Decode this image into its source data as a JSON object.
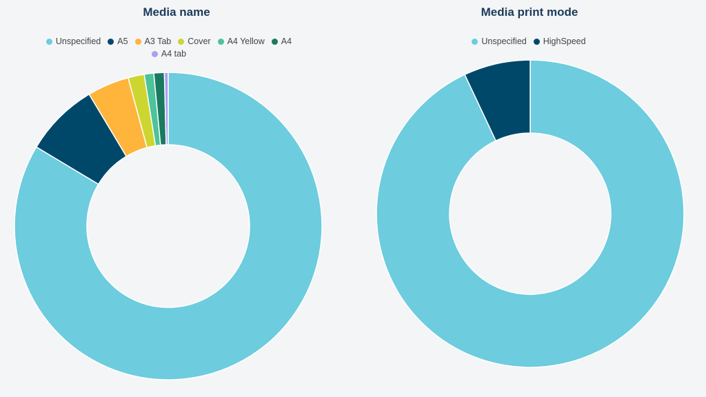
{
  "chart_data": [
    {
      "type": "pie",
      "variant": "donut",
      "title": "Media name",
      "legend_position": "top",
      "categories": [
        "Unspecified",
        "A5",
        "A3 Tab",
        "Cover",
        "A4 Yellow",
        "A4",
        "A4 tab"
      ],
      "values": [
        83.6,
        7.8,
        4.4,
        1.7,
        1.0,
        1.1,
        0.4
      ],
      "colors": [
        "#6dccde",
        "#00486a",
        "#ffb43c",
        "#cdd630",
        "#4cc39a",
        "#1a7a60",
        "#a9a0f0"
      ]
    },
    {
      "type": "pie",
      "variant": "donut",
      "title": "Media print mode",
      "legend_position": "top",
      "categories": [
        "Unspecified",
        "HighSpeed"
      ],
      "values": [
        93,
        7
      ],
      "colors": [
        "#6dccde",
        "#00486a"
      ]
    }
  ]
}
